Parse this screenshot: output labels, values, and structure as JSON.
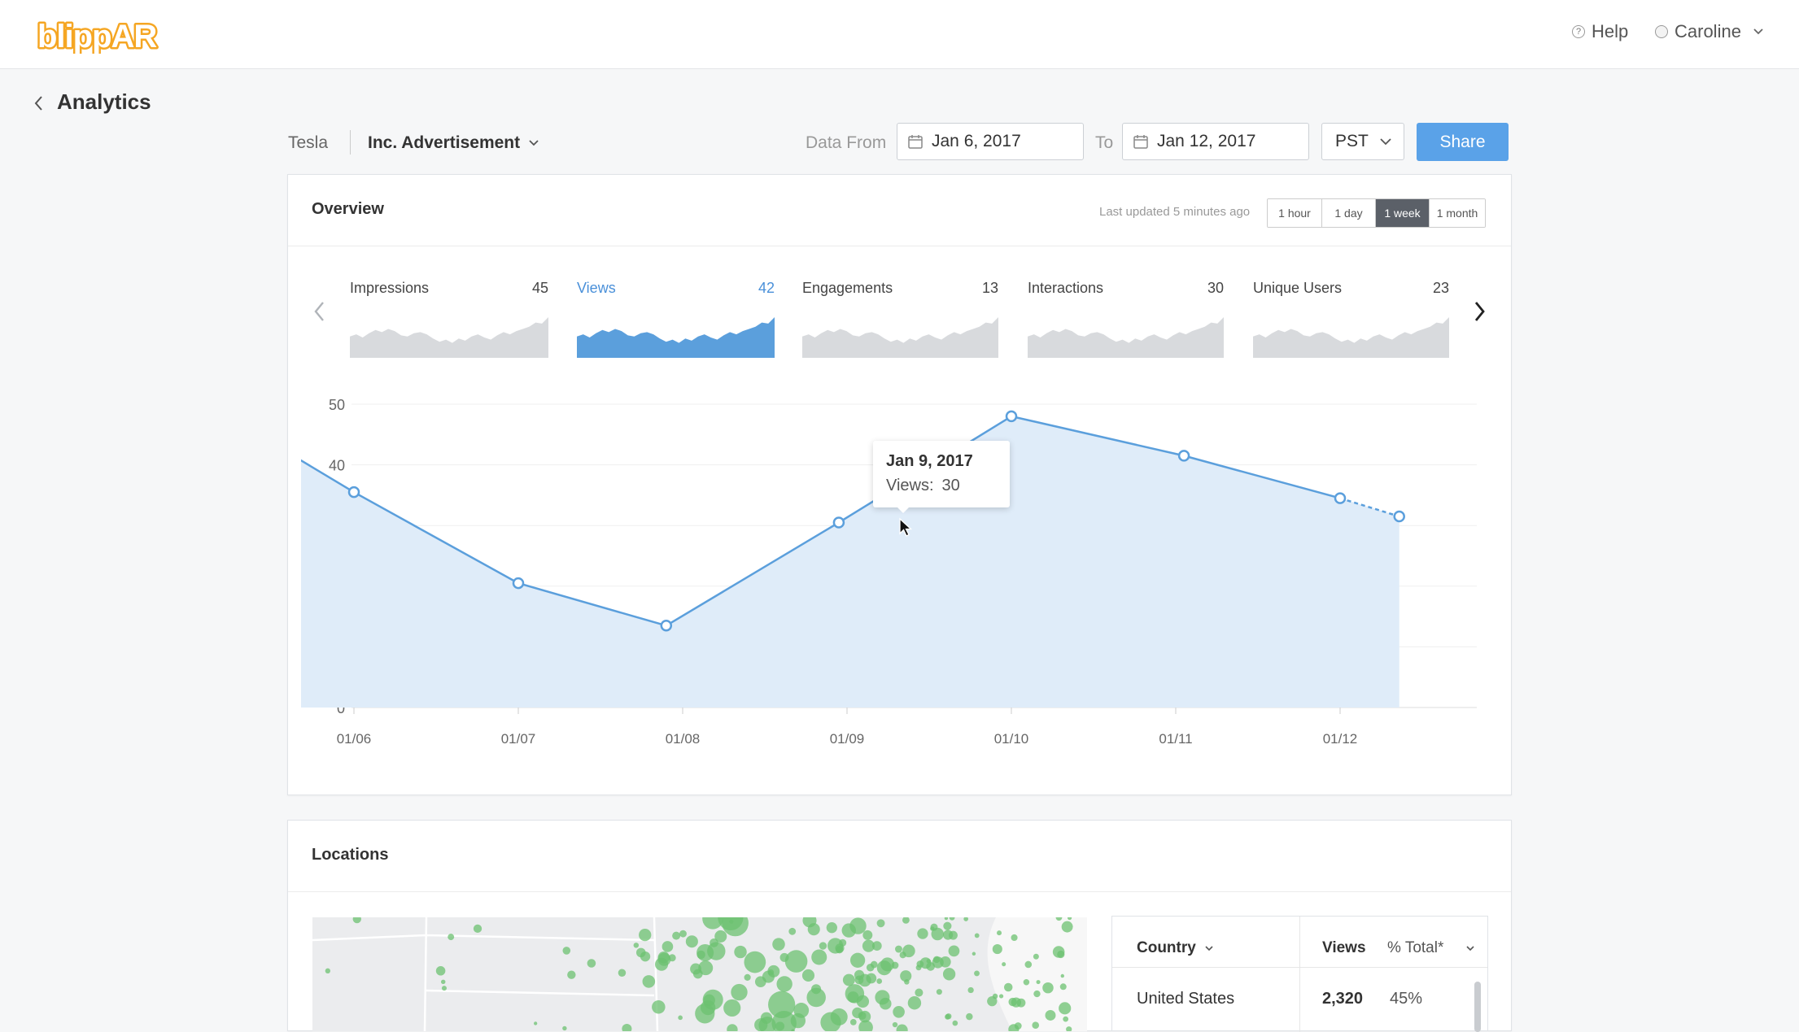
{
  "colors": {
    "accent": "#5aa2e8",
    "logo": "#f5a623",
    "series": "#5b9fdc",
    "fill": "#dfecf9",
    "sparkGray": "#d8dadd",
    "mapGreen": "#6cc270"
  },
  "header": {
    "logo_text": "blippAR",
    "help_icon": "question-circle-icon",
    "help_label": "Help",
    "user_icon": "user-circle-icon",
    "user_name": "Caroline"
  },
  "page": {
    "title": "Analytics",
    "back_icon": "chevron-left-icon"
  },
  "filters": {
    "brand": "Tesla",
    "campaign": "Inc. Advertisement",
    "data_from_label": "Data From",
    "from_date": "Jan 6, 2017",
    "to_label": "To",
    "to_date": "Jan 12, 2017",
    "timezone": "PST",
    "share_label": "Share"
  },
  "overview": {
    "title": "Overview",
    "last_updated": "Last updated 5 minutes ago",
    "ranges": [
      {
        "label": "1 hour",
        "active": false
      },
      {
        "label": "1 day",
        "active": false
      },
      {
        "label": "1 week",
        "active": true
      },
      {
        "label": "1 month",
        "active": false
      }
    ],
    "metrics": [
      {
        "label": "Impressions",
        "value": "45",
        "active": false
      },
      {
        "label": "Views",
        "value": "42",
        "active": true
      },
      {
        "label": "Engagements",
        "value": "13",
        "active": false
      },
      {
        "label": "Interactions",
        "value": "30",
        "active": false
      },
      {
        "label": "Unique Users",
        "value": "23",
        "active": false
      }
    ],
    "spark_values": [
      20,
      22,
      19,
      23,
      26,
      24,
      27,
      25,
      21,
      20,
      23,
      24,
      22,
      18,
      15,
      17,
      14,
      18,
      16,
      20,
      22,
      19,
      17,
      21,
      24,
      22,
      25,
      27,
      29,
      33,
      32,
      38
    ],
    "tooltip": {
      "date": "Jan 9, 2017",
      "label": "Views:",
      "value": "30"
    }
  },
  "chart_data": {
    "type": "area",
    "categories": [
      "01/06",
      "01/07",
      "01/08",
      "01/09",
      "01/10",
      "01/11",
      "01/12"
    ],
    "points": [
      {
        "x": 5.6,
        "y": 42
      },
      {
        "x": 6.0,
        "y": 35.5
      },
      {
        "x": 7.0,
        "y": 20.5
      },
      {
        "x": 7.9,
        "y": 13.5
      },
      {
        "x": 8.95,
        "y": 30.5
      },
      {
        "x": 10.0,
        "y": 48
      },
      {
        "x": 11.05,
        "y": 41.5
      },
      {
        "x": 12.0,
        "y": 34.5
      },
      {
        "x": 12.36,
        "y": 31.5
      }
    ],
    "marker_indices": [
      1,
      2,
      3,
      4,
      5,
      6,
      7,
      8
    ],
    "dashed_last_segment": true,
    "y_ticks": [
      0,
      10,
      20,
      30,
      40,
      50
    ],
    "ylim": [
      0,
      50
    ],
    "xlim": [
      5.6,
      12.36
    ],
    "grid": true,
    "highlight_index": 4
  },
  "locations": {
    "title": "Locations",
    "table": {
      "col_country": "Country",
      "col_views": "Views",
      "col_total": "% Total*",
      "rows": [
        {
          "country": "United States",
          "views": "2,320",
          "pct": "45%"
        }
      ]
    }
  }
}
